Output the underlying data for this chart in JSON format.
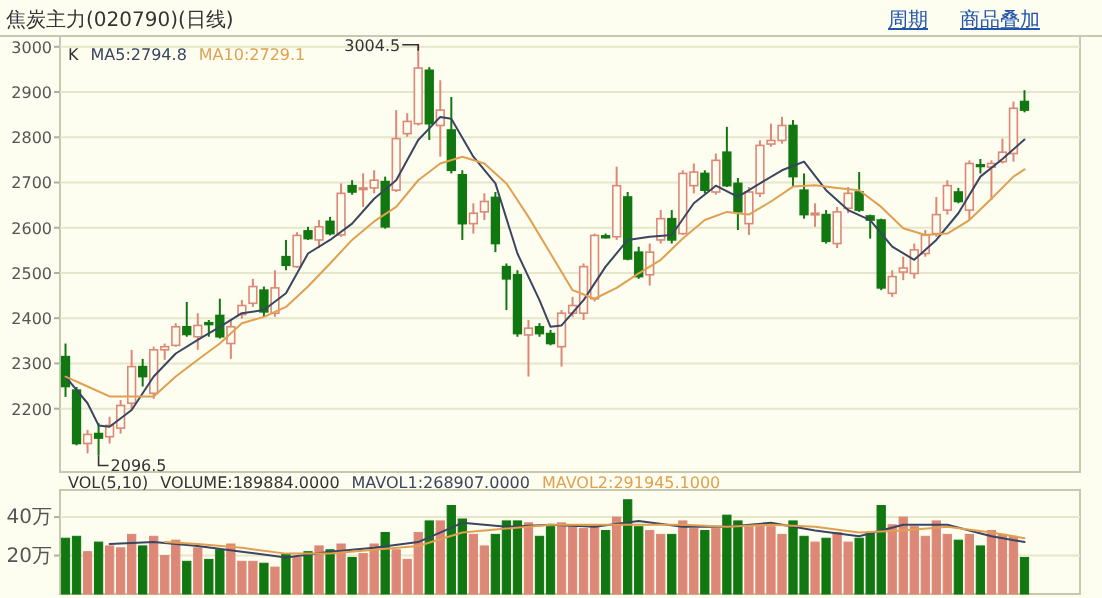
{
  "chart_data": [
    {
      "type": "candlestick",
      "title": "焦炭主力(020790)(日线)",
      "legend_title": "K",
      "legend": "top left",
      "grid": "y",
      "tick_labels": "y",
      "categories": [
        null,
        null,
        null,
        null,
        null,
        null,
        null,
        null,
        null,
        null,
        null,
        null,
        null,
        null,
        null,
        null,
        null,
        null,
        null,
        null,
        null,
        null,
        null,
        null,
        null,
        null,
        null,
        null,
        null,
        null,
        null,
        null,
        null,
        null,
        null,
        null,
        null,
        null,
        null,
        null,
        null,
        null,
        null,
        null,
        null,
        null,
        null,
        null,
        null,
        null,
        null,
        null,
        null,
        null,
        null,
        null,
        null,
        null,
        null,
        null,
        null,
        null,
        null,
        null,
        null,
        null,
        null,
        null,
        null,
        null,
        null,
        null,
        null,
        null,
        null,
        null,
        null,
        null,
        null,
        null,
        null,
        null,
        null,
        null,
        null,
        null,
        null,
        null
      ],
      "ylim": [
        2060,
        3015
      ],
      "yticks": [
        2200,
        2300,
        2400,
        2500,
        2600,
        2700,
        2800,
        2900,
        3000
      ],
      "ohlc": [
        [
          2315,
          2344,
          2226,
          2249
        ],
        [
          2241,
          2248,
          2119,
          2123
        ],
        [
          2123,
          2153,
          2101,
          2143
        ],
        [
          2145,
          2168,
          2096.5,
          2135
        ],
        [
          2138,
          2182,
          2123,
          2163
        ],
        [
          2157,
          2219,
          2145,
          2207
        ],
        [
          2212,
          2330,
          2197,
          2293
        ],
        [
          2293,
          2310,
          2249,
          2271
        ],
        [
          2234,
          2337,
          2222,
          2330
        ],
        [
          2330,
          2344,
          2308,
          2337
        ],
        [
          2340,
          2389,
          2337,
          2381
        ],
        [
          2381,
          2436,
          2359,
          2364
        ],
        [
          2359,
          2411,
          2330,
          2384
        ],
        [
          2390,
          2396,
          2359,
          2386
        ],
        [
          2406,
          2443,
          2355,
          2359
        ],
        [
          2344,
          2396,
          2310,
          2381
        ],
        [
          2408,
          2440,
          2399,
          2428
        ],
        [
          2433,
          2487,
          2425,
          2470
        ],
        [
          2462,
          2470,
          2403,
          2414
        ],
        [
          2411,
          2506,
          2403,
          2467
        ],
        [
          2536,
          2573,
          2506,
          2517
        ],
        [
          2514,
          2590,
          2511,
          2583
        ],
        [
          2593,
          2602,
          2573,
          2576
        ],
        [
          2573,
          2617,
          2555,
          2602
        ],
        [
          2614,
          2624,
          2583,
          2587
        ],
        [
          2584,
          2698,
          2580,
          2676
        ],
        [
          2693,
          2705,
          2673,
          2679
        ],
        [
          2686,
          2720,
          2646,
          2688
        ],
        [
          2688,
          2727,
          2676,
          2705
        ],
        [
          2702,
          2713,
          2598,
          2602
        ],
        [
          2683,
          2860,
          2679,
          2797
        ],
        [
          2808,
          2853,
          2801,
          2835
        ],
        [
          2830,
          3004.5,
          2826,
          2953
        ],
        [
          2948,
          2955,
          2794,
          2830
        ],
        [
          2826,
          2926,
          2757,
          2860
        ],
        [
          2816,
          2889,
          2720,
          2727
        ],
        [
          2717,
          2727,
          2573,
          2609
        ],
        [
          2609,
          2654,
          2587,
          2632
        ],
        [
          2635,
          2676,
          2617,
          2658
        ],
        [
          2667,
          2679,
          2546,
          2565
        ],
        [
          2514,
          2521,
          2418,
          2487
        ],
        [
          2496,
          2506,
          2359,
          2366
        ],
        [
          2363,
          2396,
          2271,
          2378
        ],
        [
          2381,
          2389,
          2359,
          2366
        ],
        [
          2366,
          2374,
          2340,
          2344
        ],
        [
          2337,
          2418,
          2293,
          2411
        ],
        [
          2411,
          2447,
          2403,
          2428
        ],
        [
          2411,
          2521,
          2396,
          2514
        ],
        [
          2443,
          2587,
          2437,
          2583
        ],
        [
          2582,
          2587,
          2576,
          2578
        ],
        [
          2580,
          2735,
          2573,
          2693
        ],
        [
          2668,
          2679,
          2528,
          2531
        ],
        [
          2546,
          2558,
          2487,
          2492
        ],
        [
          2496,
          2565,
          2472,
          2546
        ],
        [
          2573,
          2639,
          2565,
          2620
        ],
        [
          2620,
          2639,
          2565,
          2573
        ],
        [
          2587,
          2727,
          2584,
          2720
        ],
        [
          2693,
          2742,
          2676,
          2723
        ],
        [
          2720,
          2727,
          2676,
          2683
        ],
        [
          2679,
          2764,
          2673,
          2749
        ],
        [
          2767,
          2823,
          2690,
          2693
        ],
        [
          2698,
          2710,
          2595,
          2635
        ],
        [
          2609,
          2690,
          2584,
          2679
        ],
        [
          2676,
          2793,
          2668,
          2782
        ],
        [
          2785,
          2830,
          2779,
          2793
        ],
        [
          2793,
          2845,
          2786,
          2826
        ],
        [
          2826,
          2838,
          2690,
          2713
        ],
        [
          2683,
          2720,
          2620,
          2629
        ],
        [
          2630,
          2654,
          2602,
          2632
        ],
        [
          2629,
          2639,
          2565,
          2570
        ],
        [
          2565,
          2646,
          2555,
          2635
        ],
        [
          2643,
          2690,
          2632,
          2676
        ],
        [
          2679,
          2723,
          2635,
          2639
        ],
        [
          2626,
          2629,
          2576,
          2617
        ],
        [
          2617,
          2620,
          2462,
          2467
        ],
        [
          2455,
          2506,
          2447,
          2492
        ],
        [
          2502,
          2536,
          2484,
          2511
        ],
        [
          2499,
          2565,
          2487,
          2551
        ],
        [
          2543,
          2595,
          2536,
          2584
        ],
        [
          2587,
          2668,
          2580,
          2629
        ],
        [
          2639,
          2705,
          2629,
          2693
        ],
        [
          2679,
          2688,
          2654,
          2658
        ],
        [
          2639,
          2749,
          2617,
          2742
        ],
        [
          2739,
          2752,
          2720,
          2737
        ],
        [
          2734,
          2749,
          2661,
          2742
        ],
        [
          2746,
          2797,
          2742,
          2767
        ],
        [
          2764,
          2879,
          2746,
          2864
        ],
        [
          2879,
          2904,
          2855,
          2860
        ]
      ],
      "colors": [
        "#117711",
        "#117711",
        "#dd8877",
        "#117711",
        "#dd8877",
        "#dd8877",
        "#dd8877",
        "#117711",
        "#dd8877",
        "#dd8877",
        "#dd8877",
        "#117711",
        "#dd8877",
        "#117711",
        "#117711",
        "#dd8877",
        "#dd8877",
        "#dd8877",
        "#117711",
        "#dd8877",
        "#117711",
        "#dd8877",
        "#117711",
        "#dd8877",
        "#117711",
        "#dd8877",
        "#117711",
        "#dd8877",
        "#dd8877",
        "#117711",
        "#dd8877",
        "#dd8877",
        "#dd8877",
        "#117711",
        "#dd8877",
        "#117711",
        "#117711",
        "#dd8877",
        "#dd8877",
        "#117711",
        "#117711",
        "#117711",
        "#dd8877",
        "#117711",
        "#117711",
        "#dd8877",
        "#dd8877",
        "#dd8877",
        "#dd8877",
        "#117711",
        "#dd8877",
        "#117711",
        "#117711",
        "#dd8877",
        "#dd8877",
        "#117711",
        "#dd8877",
        "#dd8877",
        "#117711",
        "#dd8877",
        "#117711",
        "#117711",
        "#dd8877",
        "#dd8877",
        "#dd8877",
        "#dd8877",
        "#117711",
        "#117711",
        "#dd8877",
        "#117711",
        "#dd8877",
        "#dd8877",
        "#117711",
        "#117711",
        "#117711",
        "#dd8877",
        "#dd8877",
        "#dd8877",
        "#dd8877",
        "#dd8877",
        "#dd8877",
        "#117711",
        "#dd8877",
        "#117711",
        "#dd8877",
        "#dd8877",
        "#dd8877",
        "#117711"
      ],
      "series": [
        {
          "name": "MA5:2794.8",
          "type": "line",
          "color": "#3a4560",
          "values": [
            2271,
            null,
            2212,
            2163,
            2160,
            null,
            2197,
            null,
            2271,
            null,
            2322,
            null,
            2352,
            null,
            2381,
            null,
            2411,
            null,
            2418,
            null,
            2455,
            null,
            2543,
            null,
            2573,
            null,
            2609,
            null,
            2664,
            null,
            2705,
            null,
            2794,
            null,
            2845,
            2841,
            null,
            2757,
            null,
            2698,
            null,
            2543,
            null,
            2440,
            2381,
            2384,
            null,
            2440,
            null,
            2514,
            null,
            2573,
            null,
            2580,
            null,
            2584,
            null,
            2654,
            null,
            2693,
            null,
            2668,
            null,
            2698,
            null,
            2727,
            null,
            2746,
            null,
            2683,
            null,
            2639,
            null,
            2617,
            null,
            2558,
            null,
            2529,
            null,
            2573,
            null,
            2632,
            null,
            2713,
            null,
            2752,
            null,
            2795
          ]
        },
        {
          "name": "MA10:2729.1",
          "type": "line",
          "color": "#e0a050",
          "values": [
            2271,
            null,
            2249,
            null,
            2227,
            null,
            2227,
            null,
            2227,
            null,
            2271,
            null,
            2308,
            null,
            2344,
            null,
            2389,
            null,
            2403,
            null,
            2425,
            null,
            2470,
            null,
            2521,
            null,
            2573,
            null,
            2614,
            null,
            2646,
            null,
            2705,
            null,
            2742,
            null,
            2757,
            null,
            2742,
            null,
            2698,
            null,
            2624,
            null,
            2543,
            null,
            2462,
            null,
            2443,
            null,
            2467,
            null,
            2499,
            null,
            2529,
            null,
            2576,
            null,
            2617,
            null,
            2635,
            null,
            2629,
            null,
            2658,
            null,
            2691,
            null,
            2694,
            null,
            2688,
            null,
            2683,
            null,
            2646,
            null,
            2599,
            null,
            2584,
            null,
            2587,
            null,
            2617,
            null,
            2664,
            null,
            2713,
            2729
          ]
        }
      ],
      "annotations": [
        "3004.5",
        "2096.5",
        "商品叠加",
        "周期"
      ]
    },
    {
      "type": "bar",
      "legend_title": "VOL(5,10)",
      "legend": "top left",
      "grid": "y",
      "tick_labels": "y",
      "categories": [
        null,
        null,
        null,
        null,
        null,
        null,
        null,
        null,
        null,
        null,
        null,
        null,
        null,
        null,
        null,
        null,
        null,
        null,
        null,
        null,
        null,
        null,
        null,
        null,
        null,
        null,
        null,
        null,
        null,
        null,
        null,
        null,
        null,
        null,
        null,
        null,
        null,
        null,
        null,
        null,
        null,
        null,
        null,
        null,
        null,
        null,
        null,
        null,
        null,
        null,
        null,
        null,
        null,
        null,
        null,
        null,
        null,
        null,
        null,
        null,
        null,
        null,
        null,
        null,
        null,
        null,
        null,
        null,
        null,
        null,
        null,
        null,
        null,
        null,
        null,
        null,
        null,
        null,
        null,
        null,
        null,
        null,
        null,
        null,
        null,
        null,
        null,
        null
      ],
      "ylim": [
        0,
        52
      ],
      "yticks": [
        {
          "value": 20,
          "label": "20万"
        },
        {
          "value": 40,
          "label": "40万"
        }
      ],
      "series": [
        {
          "name": "VOLUME:189884.0000",
          "type": "bar",
          "colors": [
            "#117711",
            "#117711",
            "#dd8877",
            "#117711",
            "#dd8877",
            "#dd8877",
            "#dd8877",
            "#117711",
            "#dd8877",
            "#dd8877",
            "#dd8877",
            "#117711",
            "#dd8877",
            "#117711",
            "#117711",
            "#dd8877",
            "#dd8877",
            "#dd8877",
            "#117711",
            "#dd8877",
            "#117711",
            "#dd8877",
            "#117711",
            "#dd8877",
            "#117711",
            "#dd8877",
            "#117711",
            "#dd8877",
            "#dd8877",
            "#117711",
            "#dd8877",
            "#dd8877",
            "#dd8877",
            "#117711",
            "#dd8877",
            "#117711",
            "#117711",
            "#dd8877",
            "#dd8877",
            "#117711",
            "#117711",
            "#117711",
            "#dd8877",
            "#117711",
            "#117711",
            "#dd8877",
            "#dd8877",
            "#dd8877",
            "#dd8877",
            "#117711",
            "#dd8877",
            "#117711",
            "#117711",
            "#dd8877",
            "#dd8877",
            "#117711",
            "#dd8877",
            "#dd8877",
            "#117711",
            "#dd8877",
            "#117711",
            "#117711",
            "#dd8877",
            "#dd8877",
            "#dd8877",
            "#dd8877",
            "#117711",
            "#117711",
            "#dd8877",
            "#117711",
            "#dd8877",
            "#dd8877",
            "#117711",
            "#117711",
            "#117711",
            "#dd8877",
            "#dd8877",
            "#dd8877",
            "#dd8877",
            "#dd8877",
            "#dd8877",
            "#117711",
            "#dd8877",
            "#117711",
            "#dd8877",
            "#dd8877",
            "#dd8877",
            "#117711"
          ],
          "values": [
            29,
            30,
            22,
            27,
            25,
            24,
            31,
            25,
            30,
            20,
            28,
            17,
            24,
            18,
            23,
            26,
            17,
            17,
            16,
            14,
            21,
            19,
            22,
            25,
            23,
            26,
            19,
            21,
            26,
            32,
            23,
            18,
            32,
            38,
            38,
            46,
            39,
            31,
            25,
            31,
            38,
            38,
            37,
            30,
            35,
            37,
            35,
            34,
            36,
            33,
            40,
            49,
            35,
            33,
            31,
            31,
            38,
            34,
            33,
            34,
            41,
            38,
            35,
            36,
            35,
            31,
            38,
            30,
            27,
            29,
            32,
            27,
            29,
            32,
            46,
            36,
            40,
            35,
            30,
            38,
            31,
            28,
            31,
            25,
            33,
            31,
            30,
            19
          ]
        },
        {
          "name": "MAVOL1:268907.0000",
          "type": "line",
          "color": "#3a4560",
          "values": [
            null,
            null,
            null,
            null,
            26,
            null,
            null,
            null,
            27,
            null,
            null,
            null,
            25,
            null,
            null,
            null,
            22,
            null,
            null,
            null,
            19,
            null,
            null,
            null,
            22,
            null,
            null,
            null,
            24,
            null,
            null,
            null,
            27,
            null,
            null,
            null,
            37,
            null,
            null,
            null,
            35,
            null,
            null,
            null,
            36,
            null,
            null,
            null,
            35,
            null,
            null,
            null,
            38,
            null,
            null,
            null,
            35,
            null,
            null,
            null,
            35,
            null,
            null,
            null,
            37,
            null,
            null,
            null,
            33,
            null,
            null,
            null,
            30,
            null,
            null,
            null,
            36,
            null,
            null,
            null,
            36,
            null,
            null,
            null,
            30,
            null,
            null,
            27
          ]
        },
        {
          "name": "MAVOL2:291945.1000",
          "type": "line",
          "color": "#e0a050",
          "values": [
            null,
            null,
            null,
            null,
            null,
            null,
            null,
            null,
            null,
            27,
            null,
            null,
            26,
            null,
            null,
            null,
            24,
            null,
            null,
            null,
            21,
            null,
            null,
            null,
            21,
            null,
            null,
            null,
            23,
            null,
            null,
            null,
            25,
            null,
            null,
            null,
            32,
            null,
            null,
            null,
            34,
            null,
            null,
            null,
            36,
            null,
            null,
            null,
            36,
            null,
            null,
            null,
            36,
            null,
            null,
            null,
            36,
            null,
            null,
            null,
            35,
            null,
            null,
            null,
            36,
            null,
            null,
            null,
            35,
            null,
            null,
            null,
            32,
            null,
            null,
            null,
            33,
            null,
            null,
            null,
            35,
            null,
            null,
            null,
            32,
            null,
            null,
            29
          ]
        }
      ]
    }
  ]
}
